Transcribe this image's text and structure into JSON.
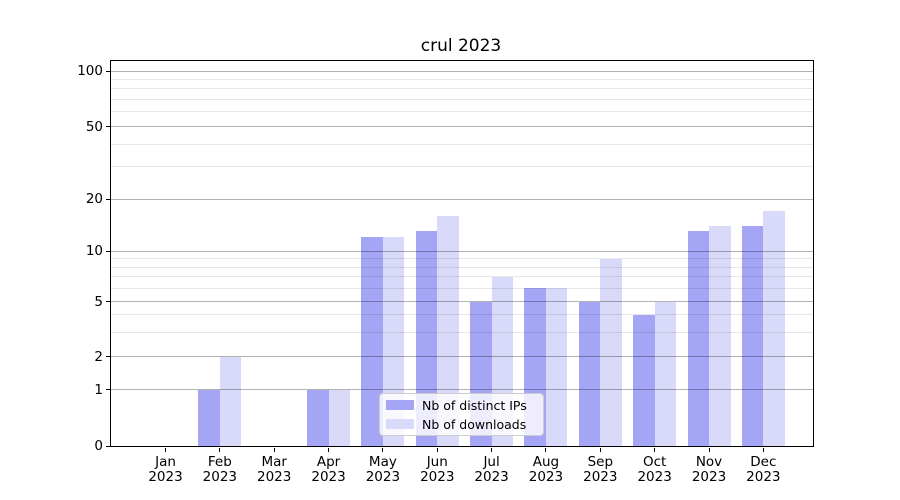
{
  "title": "crul 2023",
  "legend": {
    "items": [
      {
        "label": "Nb of distinct IPs",
        "color": "#a5a5f6"
      },
      {
        "label": "Nb of downloads",
        "color": "#d9d9fa"
      }
    ]
  },
  "chart_data": {
    "type": "bar",
    "title": "crul 2023",
    "categories": [
      "Jan 2023",
      "Feb 2023",
      "Mar 2023",
      "Apr 2023",
      "May 2023",
      "Jun 2023",
      "Jul 2023",
      "Aug 2023",
      "Sep 2023",
      "Oct 2023",
      "Nov 2023",
      "Dec 2023"
    ],
    "series": [
      {
        "name": "Nb of distinct IPs",
        "color": "#a5a5f6",
        "values": [
          0,
          1,
          0,
          1,
          12,
          13,
          5,
          6,
          5,
          4,
          13,
          14
        ]
      },
      {
        "name": "Nb of downloads",
        "color": "#d9d9fa",
        "values": [
          0,
          2,
          0,
          1,
          12,
          16,
          7,
          6,
          9,
          5,
          14,
          17
        ]
      }
    ],
    "xlabel": "",
    "ylabel": "",
    "yscale": "log-like (ticks 0,1,2,5,10,20,50,100)",
    "ylim": [
      0,
      120
    ],
    "ytick_labels": [
      0,
      1,
      2,
      5,
      10,
      20,
      50,
      100
    ],
    "minor_gridlines": [
      3,
      4,
      6,
      7,
      8,
      9,
      30,
      40,
      60,
      70,
      80,
      90
    ],
    "grid": true,
    "legend_position": "lower center"
  }
}
